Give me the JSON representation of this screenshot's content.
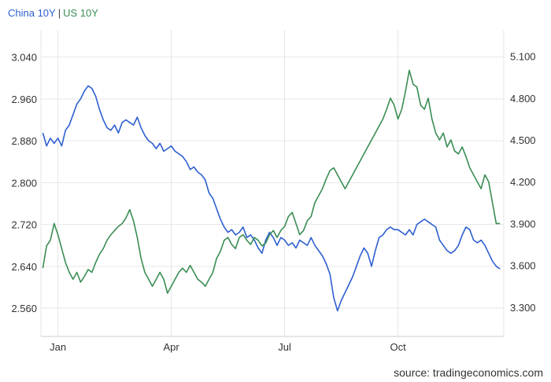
{
  "legend": {
    "china_label": "China 10Y",
    "separator": "|",
    "us_label": "US 10Y"
  },
  "source": "source: tradingeconomics.com",
  "colors": {
    "china": "#2e5fd0",
    "us": "#3a8d54",
    "grid": "#e6e6e6",
    "axis": "#cccccc"
  },
  "chart_data": {
    "type": "line",
    "x_ticks": [
      "Jan",
      "Apr",
      "Jul",
      "Oct"
    ],
    "x_tick_positions": [
      1.0,
      4.0,
      7.0,
      10.0
    ],
    "xlim": [
      0.55,
      12.8
    ],
    "y_left": {
      "ticks": [
        "3.040",
        "2.960",
        "2.880",
        "2.800",
        "2.720",
        "2.640",
        "2.560"
      ],
      "tick_values": [
        3.04,
        2.96,
        2.88,
        2.8,
        2.72,
        2.64,
        2.56
      ],
      "ylim": [
        2.506,
        3.092
      ]
    },
    "y_right": {
      "ticks": [
        "5.100",
        "4.800",
        "4.500",
        "4.200",
        "3.900",
        "3.600",
        "3.300"
      ],
      "tick_values": [
        5.1,
        4.8,
        4.5,
        4.2,
        3.9,
        3.6,
        3.3
      ],
      "ylim": [
        3.09,
        5.29
      ]
    },
    "grid": true,
    "series": [
      {
        "name": "China 10Y",
        "axis": "left",
        "points": [
          [
            0.6,
            2.895
          ],
          [
            0.7,
            2.87
          ],
          [
            0.8,
            2.885
          ],
          [
            0.9,
            2.875
          ],
          [
            1.0,
            2.885
          ],
          [
            1.1,
            2.87
          ],
          [
            1.2,
            2.9
          ],
          [
            1.3,
            2.91
          ],
          [
            1.4,
            2.93
          ],
          [
            1.5,
            2.95
          ],
          [
            1.6,
            2.96
          ],
          [
            1.7,
            2.975
          ],
          [
            1.8,
            2.985
          ],
          [
            1.9,
            2.98
          ],
          [
            2.0,
            2.965
          ],
          [
            2.1,
            2.94
          ],
          [
            2.2,
            2.92
          ],
          [
            2.3,
            2.905
          ],
          [
            2.4,
            2.9
          ],
          [
            2.5,
            2.91
          ],
          [
            2.6,
            2.895
          ],
          [
            2.7,
            2.915
          ],
          [
            2.8,
            2.92
          ],
          [
            2.9,
            2.915
          ],
          [
            3.0,
            2.91
          ],
          [
            3.1,
            2.925
          ],
          [
            3.2,
            2.905
          ],
          [
            3.3,
            2.89
          ],
          [
            3.4,
            2.88
          ],
          [
            3.5,
            2.875
          ],
          [
            3.6,
            2.865
          ],
          [
            3.7,
            2.875
          ],
          [
            3.8,
            2.86
          ],
          [
            3.9,
            2.865
          ],
          [
            4.0,
            2.87
          ],
          [
            4.1,
            2.86
          ],
          [
            4.2,
            2.855
          ],
          [
            4.3,
            2.85
          ],
          [
            4.4,
            2.84
          ],
          [
            4.5,
            2.825
          ],
          [
            4.6,
            2.83
          ],
          [
            4.7,
            2.82
          ],
          [
            4.8,
            2.815
          ],
          [
            4.9,
            2.805
          ],
          [
            5.0,
            2.78
          ],
          [
            5.1,
            2.77
          ],
          [
            5.2,
            2.75
          ],
          [
            5.3,
            2.73
          ],
          [
            5.4,
            2.715
          ],
          [
            5.5,
            2.705
          ],
          [
            5.6,
            2.71
          ],
          [
            5.7,
            2.7
          ],
          [
            5.8,
            2.705
          ],
          [
            5.9,
            2.715
          ],
          [
            6.0,
            2.695
          ],
          [
            6.1,
            2.7
          ],
          [
            6.2,
            2.69
          ],
          [
            6.3,
            2.675
          ],
          [
            6.4,
            2.665
          ],
          [
            6.5,
            2.69
          ],
          [
            6.6,
            2.705
          ],
          [
            6.7,
            2.695
          ],
          [
            6.8,
            2.68
          ],
          [
            6.9,
            2.695
          ],
          [
            7.0,
            2.69
          ],
          [
            7.1,
            2.68
          ],
          [
            7.2,
            2.685
          ],
          [
            7.3,
            2.675
          ],
          [
            7.4,
            2.69
          ],
          [
            7.5,
            2.685
          ],
          [
            7.6,
            2.68
          ],
          [
            7.7,
            2.695
          ],
          [
            7.8,
            2.68
          ],
          [
            7.9,
            2.67
          ],
          [
            8.0,
            2.66
          ],
          [
            8.1,
            2.645
          ],
          [
            8.2,
            2.625
          ],
          [
            8.3,
            2.58
          ],
          [
            8.4,
            2.555
          ],
          [
            8.5,
            2.575
          ],
          [
            8.6,
            2.59
          ],
          [
            8.7,
            2.605
          ],
          [
            8.8,
            2.62
          ],
          [
            8.9,
            2.64
          ],
          [
            9.0,
            2.66
          ],
          [
            9.1,
            2.675
          ],
          [
            9.2,
            2.665
          ],
          [
            9.3,
            2.64
          ],
          [
            9.4,
            2.67
          ],
          [
            9.5,
            2.695
          ],
          [
            9.6,
            2.7
          ],
          [
            9.7,
            2.71
          ],
          [
            9.8,
            2.715
          ],
          [
            9.9,
            2.71
          ],
          [
            10.0,
            2.71
          ],
          [
            10.1,
            2.705
          ],
          [
            10.2,
            2.7
          ],
          [
            10.3,
            2.71
          ],
          [
            10.4,
            2.7
          ],
          [
            10.5,
            2.72
          ],
          [
            10.6,
            2.725
          ],
          [
            10.7,
            2.73
          ],
          [
            10.8,
            2.725
          ],
          [
            10.9,
            2.72
          ],
          [
            11.0,
            2.715
          ],
          [
            11.1,
            2.69
          ],
          [
            11.2,
            2.68
          ],
          [
            11.3,
            2.67
          ],
          [
            11.4,
            2.665
          ],
          [
            11.5,
            2.67
          ],
          [
            11.6,
            2.68
          ],
          [
            11.7,
            2.7
          ],
          [
            11.8,
            2.715
          ],
          [
            11.9,
            2.71
          ],
          [
            12.0,
            2.69
          ],
          [
            12.1,
            2.685
          ],
          [
            12.2,
            2.69
          ],
          [
            12.3,
            2.68
          ],
          [
            12.4,
            2.665
          ],
          [
            12.5,
            2.65
          ],
          [
            12.6,
            2.64
          ],
          [
            12.7,
            2.635
          ]
        ]
      },
      {
        "name": "US 10Y",
        "axis": "right",
        "points": [
          [
            0.6,
            3.58
          ],
          [
            0.7,
            3.74
          ],
          [
            0.8,
            3.78
          ],
          [
            0.9,
            3.9
          ],
          [
            1.0,
            3.82
          ],
          [
            1.1,
            3.72
          ],
          [
            1.2,
            3.62
          ],
          [
            1.3,
            3.55
          ],
          [
            1.4,
            3.5
          ],
          [
            1.5,
            3.55
          ],
          [
            1.6,
            3.48
          ],
          [
            1.7,
            3.52
          ],
          [
            1.8,
            3.57
          ],
          [
            1.9,
            3.55
          ],
          [
            2.0,
            3.62
          ],
          [
            2.1,
            3.68
          ],
          [
            2.2,
            3.72
          ],
          [
            2.3,
            3.78
          ],
          [
            2.4,
            3.82
          ],
          [
            2.5,
            3.85
          ],
          [
            2.6,
            3.88
          ],
          [
            2.7,
            3.9
          ],
          [
            2.8,
            3.94
          ],
          [
            2.9,
            4.0
          ],
          [
            3.0,
            3.92
          ],
          [
            3.1,
            3.8
          ],
          [
            3.2,
            3.65
          ],
          [
            3.3,
            3.55
          ],
          [
            3.4,
            3.5
          ],
          [
            3.5,
            3.45
          ],
          [
            3.6,
            3.5
          ],
          [
            3.7,
            3.55
          ],
          [
            3.8,
            3.5
          ],
          [
            3.9,
            3.4
          ],
          [
            4.0,
            3.45
          ],
          [
            4.1,
            3.5
          ],
          [
            4.2,
            3.55
          ],
          [
            4.3,
            3.58
          ],
          [
            4.4,
            3.55
          ],
          [
            4.5,
            3.6
          ],
          [
            4.6,
            3.55
          ],
          [
            4.7,
            3.5
          ],
          [
            4.8,
            3.48
          ],
          [
            4.9,
            3.45
          ],
          [
            5.0,
            3.5
          ],
          [
            5.1,
            3.55
          ],
          [
            5.2,
            3.65
          ],
          [
            5.3,
            3.7
          ],
          [
            5.4,
            3.78
          ],
          [
            5.5,
            3.8
          ],
          [
            5.6,
            3.75
          ],
          [
            5.7,
            3.72
          ],
          [
            5.8,
            3.8
          ],
          [
            5.9,
            3.82
          ],
          [
            6.0,
            3.78
          ],
          [
            6.1,
            3.75
          ],
          [
            6.2,
            3.8
          ],
          [
            6.3,
            3.78
          ],
          [
            6.4,
            3.74
          ],
          [
            6.5,
            3.76
          ],
          [
            6.6,
            3.82
          ],
          [
            6.7,
            3.85
          ],
          [
            6.8,
            3.8
          ],
          [
            6.9,
            3.85
          ],
          [
            7.0,
            3.88
          ],
          [
            7.1,
            3.95
          ],
          [
            7.2,
            3.98
          ],
          [
            7.3,
            3.9
          ],
          [
            7.4,
            3.82
          ],
          [
            7.5,
            3.85
          ],
          [
            7.6,
            3.92
          ],
          [
            7.7,
            3.95
          ],
          [
            7.8,
            4.05
          ],
          [
            7.9,
            4.1
          ],
          [
            8.0,
            4.15
          ],
          [
            8.1,
            4.22
          ],
          [
            8.2,
            4.28
          ],
          [
            8.3,
            4.3
          ],
          [
            8.4,
            4.25
          ],
          [
            8.5,
            4.2
          ],
          [
            8.6,
            4.15
          ],
          [
            8.7,
            4.2
          ],
          [
            8.8,
            4.25
          ],
          [
            8.9,
            4.3
          ],
          [
            9.0,
            4.35
          ],
          [
            9.1,
            4.4
          ],
          [
            9.2,
            4.45
          ],
          [
            9.3,
            4.5
          ],
          [
            9.4,
            4.55
          ],
          [
            9.5,
            4.6
          ],
          [
            9.6,
            4.65
          ],
          [
            9.7,
            4.72
          ],
          [
            9.8,
            4.8
          ],
          [
            9.9,
            4.75
          ],
          [
            10.0,
            4.65
          ],
          [
            10.1,
            4.72
          ],
          [
            10.2,
            4.85
          ],
          [
            10.3,
            5.0
          ],
          [
            10.4,
            4.9
          ],
          [
            10.5,
            4.88
          ],
          [
            10.6,
            4.75
          ],
          [
            10.7,
            4.72
          ],
          [
            10.8,
            4.8
          ],
          [
            10.9,
            4.65
          ],
          [
            11.0,
            4.55
          ],
          [
            11.1,
            4.5
          ],
          [
            11.2,
            4.55
          ],
          [
            11.3,
            4.45
          ],
          [
            11.4,
            4.5
          ],
          [
            11.5,
            4.42
          ],
          [
            11.6,
            4.4
          ],
          [
            11.7,
            4.45
          ],
          [
            11.8,
            4.38
          ],
          [
            11.9,
            4.3
          ],
          [
            12.0,
            4.25
          ],
          [
            12.1,
            4.2
          ],
          [
            12.2,
            4.15
          ],
          [
            12.3,
            4.25
          ],
          [
            12.4,
            4.2
          ],
          [
            12.5,
            4.05
          ],
          [
            12.6,
            3.9
          ],
          [
            12.7,
            3.9
          ]
        ]
      }
    ]
  }
}
